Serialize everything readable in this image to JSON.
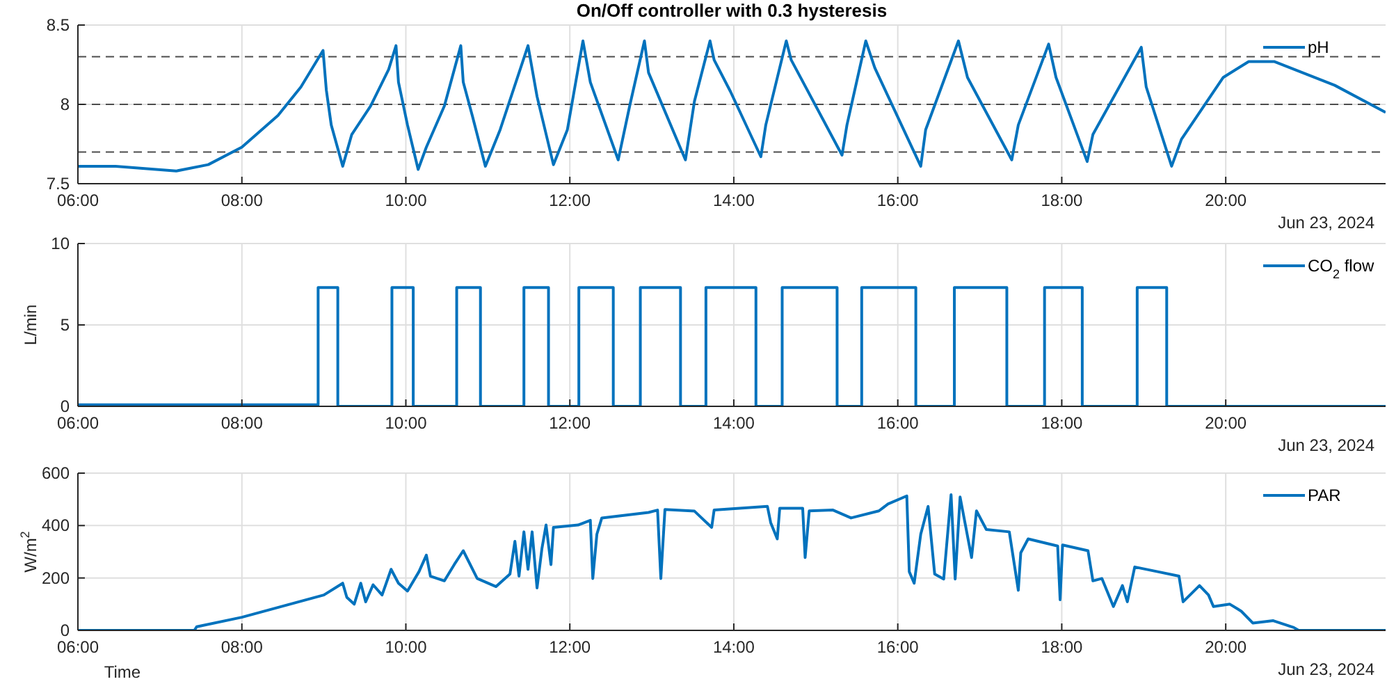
{
  "chart_data": [
    {
      "type": "line",
      "title": "On/Off controller with 0.3 hysteresis",
      "xlim": [
        6,
        21.95
      ],
      "ylim": [
        7.5,
        8.5
      ],
      "yticks": [
        7.5,
        8,
        8.5
      ],
      "xticks": [
        {
          "value": 6,
          "label": "06:00"
        },
        {
          "value": 8,
          "label": "08:00"
        },
        {
          "value": 10,
          "label": "10:00"
        },
        {
          "value": 12,
          "label": "12:00"
        },
        {
          "value": 14,
          "label": "14:00"
        },
        {
          "value": 16,
          "label": "16:00"
        },
        {
          "value": 18,
          "label": "18:00"
        },
        {
          "value": 20,
          "label": "20:00"
        }
      ],
      "grid": true,
      "legend": "top right",
      "annotations": [
        "Jun 23, 2024"
      ],
      "ref_lines": [
        {
          "axis": "y",
          "value": 8.3,
          "color": "#4d4d4d",
          "line_style": "dashed"
        },
        {
          "axis": "y",
          "value": 8,
          "color": "#4d4d4d",
          "line_style": "dashed"
        },
        {
          "axis": "y",
          "value": 7.7,
          "color": "#4d4d4d",
          "line_style": "dashed"
        }
      ],
      "series": [
        {
          "name": "pH",
          "color": "#0072bd",
          "x": [
            6,
            6.46,
            7.2,
            7.59,
            8,
            8.44,
            8.72,
            8.99,
            9.03,
            9.09,
            9.23,
            9.34,
            9.57,
            9.79,
            9.88,
            9.91,
            10.02,
            10.15,
            10.25,
            10.47,
            10.67,
            10.7,
            10.81,
            10.97,
            11.15,
            11.49,
            11.6,
            11.8,
            11.97,
            12.16,
            12.25,
            12.59,
            12.73,
            12.91,
            12.96,
            13.41,
            13.52,
            13.71,
            13.76,
            13.96,
            14.33,
            14.39,
            14.64,
            14.7,
            15.32,
            15.38,
            15.61,
            15.72,
            16.28,
            16.34,
            16.74,
            16.85,
            17.39,
            17.47,
            17.84,
            17.93,
            18.31,
            18.38,
            18.97,
            19.03,
            19.34,
            19.46,
            19.97,
            20.28,
            20.59,
            21.33,
            21.95
          ],
          "values": [
            7.61,
            7.61,
            7.58,
            7.62,
            7.73,
            7.93,
            8.11,
            8.34,
            8.09,
            7.87,
            7.61,
            7.81,
            7.99,
            8.22,
            8.37,
            8.14,
            7.87,
            7.59,
            7.73,
            7.99,
            8.37,
            8.14,
            7.93,
            7.61,
            7.84,
            8.37,
            8.05,
            7.62,
            7.84,
            8.4,
            8.14,
            7.65,
            7.99,
            8.4,
            8.2,
            7.65,
            8.02,
            8.4,
            8.28,
            8.08,
            7.67,
            7.87,
            8.4,
            8.28,
            7.68,
            7.87,
            8.4,
            8.23,
            7.61,
            7.84,
            8.4,
            8.17,
            7.65,
            7.87,
            8.38,
            8.17,
            7.64,
            7.81,
            8.36,
            8.11,
            7.61,
            7.78,
            8.17,
            8.27,
            8.27,
            8.12,
            7.95
          ]
        }
      ]
    },
    {
      "type": "line",
      "ylabel": "L/min",
      "xlim": [
        6,
        21.95
      ],
      "ylim": [
        0,
        10
      ],
      "yticks": [
        0,
        5,
        10
      ],
      "xticks": [
        {
          "value": 6,
          "label": "06:00"
        },
        {
          "value": 8,
          "label": "08:00"
        },
        {
          "value": 10,
          "label": "10:00"
        },
        {
          "value": 12,
          "label": "12:00"
        },
        {
          "value": 14,
          "label": "14:00"
        },
        {
          "value": 16,
          "label": "16:00"
        },
        {
          "value": 18,
          "label": "18:00"
        },
        {
          "value": 20,
          "label": "20:00"
        }
      ],
      "grid": true,
      "legend": "top right",
      "annotations": [
        "Jun 23, 2024"
      ],
      "series": [
        {
          "name": "CO$_{2}$ flow",
          "color": "#0072bd",
          "x": [
            6,
            8.93,
            8.93,
            9.17,
            9.17,
            9.83,
            9.83,
            10.09,
            10.09,
            10.62,
            10.62,
            10.91,
            10.91,
            11.44,
            11.44,
            11.74,
            11.74,
            12.11,
            12.11,
            12.53,
            12.53,
            12.86,
            12.86,
            13.35,
            13.35,
            13.66,
            13.66,
            14.27,
            14.27,
            14.59,
            14.59,
            15.26,
            15.26,
            15.56,
            15.56,
            16.22,
            16.22,
            16.69,
            16.69,
            17.33,
            17.33,
            17.79,
            17.79,
            18.25,
            18.25,
            18.92,
            18.92,
            19.28,
            19.28,
            21.95
          ],
          "values": [
            0.1,
            0.1,
            7.3,
            7.3,
            0,
            0,
            7.3,
            7.3,
            0,
            0,
            7.3,
            7.3,
            0,
            0,
            7.3,
            7.3,
            0,
            0,
            7.3,
            7.3,
            0,
            0,
            7.3,
            7.3,
            0,
            0,
            7.3,
            7.3,
            0,
            0,
            7.3,
            7.3,
            0,
            0,
            7.3,
            7.3,
            0,
            0,
            7.3,
            7.3,
            0,
            0,
            7.3,
            7.3,
            0,
            0,
            7.3,
            7.3,
            0,
            0
          ]
        }
      ]
    },
    {
      "type": "line",
      "xlabel": "Time",
      "ylabel": "W/m$^{2}$",
      "xlim": [
        6,
        21.95
      ],
      "ylim": [
        0,
        600
      ],
      "yticks": [
        0,
        200,
        400,
        600
      ],
      "xticks": [
        {
          "value": 6,
          "label": "06:00"
        },
        {
          "value": 8,
          "label": "08:00"
        },
        {
          "value": 10,
          "label": "10:00"
        },
        {
          "value": 12,
          "label": "12:00"
        },
        {
          "value": 14,
          "label": "14:00"
        },
        {
          "value": 16,
          "label": "16:00"
        },
        {
          "value": 18,
          "label": "18:00"
        },
        {
          "value": 20,
          "label": "20:00"
        }
      ],
      "grid": true,
      "legend": "top right",
      "annotations": [
        "Jun 23, 2024"
      ],
      "series": [
        {
          "name": "PAR",
          "color": "#0072bd",
          "x": [
            6,
            7.42,
            7.45,
            8,
            9,
            9.23,
            9.28,
            9.37,
            9.45,
            9.51,
            9.6,
            9.71,
            9.82,
            9.91,
            10.02,
            10.16,
            10.25,
            10.3,
            10.47,
            10.59,
            10.7,
            10.87,
            11.1,
            11.27,
            11.33,
            11.38,
            11.44,
            11.49,
            11.54,
            11.6,
            11.66,
            11.71,
            11.77,
            11.8,
            12.1,
            12.25,
            12.28,
            12.33,
            12.39,
            12.96,
            13.07,
            13.11,
            13.16,
            13.52,
            13.73,
            13.76,
            14.41,
            14.45,
            14.53,
            14.56,
            14.84,
            14.87,
            14.92,
            15.21,
            15.43,
            15.77,
            15.88,
            16.11,
            16.14,
            16.2,
            16.28,
            16.37,
            16.45,
            16.56,
            16.65,
            16.7,
            16.76,
            16.9,
            16.96,
            17.08,
            17.36,
            17.47,
            17.5,
            17.59,
            17.95,
            17.98,
            18.01,
            18.32,
            18.38,
            18.49,
            18.63,
            18.74,
            18.8,
            18.89,
            19.17,
            19.43,
            19.48,
            19.68,
            19.79,
            19.85,
            20.05,
            20.19,
            20.33,
            20.58,
            20.83,
            20.89,
            21.95
          ],
          "values": [
            0,
            0,
            14,
            50,
            135,
            180,
            126,
            100,
            180,
            109,
            174,
            135,
            233,
            180,
            150,
            224,
            287,
            207,
            189,
            251,
            304,
            198,
            167,
            215,
            340,
            207,
            376,
            233,
            376,
            162,
            313,
            402,
            251,
            393,
            402,
            420,
            198,
            367,
            429,
            450,
            459,
            198,
            461,
            455,
            393,
            459,
            473,
            411,
            349,
            466,
            466,
            278,
            456,
            459,
            429,
            456,
            482,
            513,
            224,
            180,
            367,
            473,
            215,
            196,
            518,
            196,
            509,
            278,
            456,
            385,
            376,
            153,
            296,
            349,
            322,
            117,
            326,
            304,
            189,
            198,
            91,
            171,
            109,
            242,
            224,
            207,
            109,
            171,
            135,
            91,
            100,
            73,
            28,
            37,
            11,
            0,
            0
          ]
        }
      ]
    }
  ]
}
